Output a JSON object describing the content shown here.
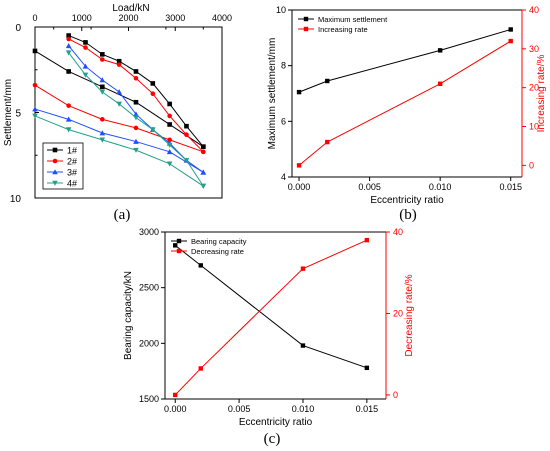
{
  "colors": {
    "black": "#000000",
    "red": "#ff0000",
    "blue": "#1f4fff",
    "green": "#22a08c",
    "gray": "#555555"
  },
  "panel_labels": {
    "a": "(a)",
    "b": "(b)",
    "c": "(c)"
  },
  "chart_data": [
    {
      "panel": "a",
      "type": "line",
      "title": "",
      "xlabel": "Load/kN",
      "ylabel": "Settlement/mm",
      "x_axis_position": "top",
      "y_axis_inverted": true,
      "xlim": [
        0,
        4000
      ],
      "ylim": [
        0,
        10
      ],
      "xticks": [
        "0",
        "1000",
        "2000",
        "3000",
        "4000"
      ],
      "x_minor_ticks": [
        "400",
        "1200",
        "2000",
        "2800",
        "3600"
      ],
      "yticks": [
        "0",
        "5",
        "10"
      ],
      "legend_position": "bottom-left",
      "series": [
        {
          "name": "1#",
          "color": "black",
          "marker": "square",
          "x": [
            0,
            720,
            1440,
            2160,
            2880,
            3600
          ],
          "y": [
            1.4,
            2.6,
            3.5,
            4.4,
            5.7,
            7.0
          ]
        },
        {
          "name": "2#",
          "color": "red",
          "marker": "circle",
          "x": [
            0,
            720,
            1440,
            2160,
            2880,
            3600
          ],
          "y": [
            3.4,
            4.6,
            5.4,
            5.9,
            6.6,
            7.3
          ]
        },
        {
          "name": "3#",
          "color": "blue",
          "marker": "triangle-up",
          "x": [
            0,
            720,
            1440,
            2160,
            2880,
            3600
          ],
          "y": [
            4.8,
            5.4,
            6.2,
            6.7,
            7.3,
            8.5
          ]
        },
        {
          "name": "4#",
          "color": "green",
          "marker": "triangle-down",
          "x": [
            0,
            720,
            1440,
            2160,
            2880,
            3600
          ],
          "y": [
            5.2,
            6.0,
            6.6,
            7.2,
            8.0,
            9.3
          ]
        },
        {
          "name": "",
          "color": "black",
          "marker": "square",
          "x": [
            720,
            1080,
            1440,
            1800,
            2160,
            2520,
            2880,
            3240,
            3600
          ],
          "y": [
            0.5,
            0.9,
            1.6,
            2.0,
            2.6,
            3.3,
            4.5,
            5.8,
            7.0
          ]
        },
        {
          "name": "",
          "color": "red",
          "marker": "circle",
          "x": [
            720,
            1080,
            1440,
            1800,
            2160,
            2520,
            2880,
            3240,
            3600
          ],
          "y": [
            0.7,
            1.2,
            1.9,
            2.2,
            3.0,
            3.9,
            5.2,
            6.3,
            7.3
          ]
        },
        {
          "name": "",
          "color": "blue",
          "marker": "triangle-up",
          "x": [
            720,
            1080,
            1440,
            1800,
            2160,
            2520,
            2880,
            3240,
            3600
          ],
          "y": [
            1.1,
            2.3,
            3.1,
            3.8,
            5.1,
            6.0,
            6.8,
            7.8,
            8.5
          ]
        },
        {
          "name": "",
          "color": "green",
          "marker": "triangle-down",
          "x": [
            720,
            1080,
            1440,
            1800,
            2160,
            2520,
            2880,
            3240,
            3600
          ],
          "y": [
            1.5,
            2.8,
            3.8,
            4.5,
            5.3,
            6.0,
            6.9,
            7.8,
            9.3
          ]
        }
      ]
    },
    {
      "panel": "b",
      "type": "line",
      "title": "",
      "xlabel": "Eccentricity ratio",
      "ylabel": "Maximum settlement/mm",
      "y2label": "Increasing rate/%",
      "xlim": [
        -0.0005,
        0.0158
      ],
      "ylim": [
        4,
        10
      ],
      "y2lim": [
        -3,
        40
      ],
      "xticks": [
        "0.000",
        "0.005",
        "0.010",
        "0.015"
      ],
      "yticks": [
        "4",
        "6",
        "8",
        "10"
      ],
      "y2ticks": [
        "0",
        "10",
        "20",
        "30",
        "40"
      ],
      "legend_position": "top-left",
      "series": [
        {
          "name": "Maximum settlement",
          "axis": "left",
          "color": "black",
          "marker": "square",
          "x": [
            0,
            0.002,
            0.01,
            0.015
          ],
          "y": [
            7.05,
            7.45,
            8.55,
            9.3
          ]
        },
        {
          "name": "Increasing rate",
          "axis": "right",
          "color": "red",
          "marker": "square",
          "x": [
            0,
            0.002,
            0.01,
            0.015
          ],
          "y": [
            0,
            6,
            21,
            32
          ]
        }
      ]
    },
    {
      "panel": "c",
      "type": "line",
      "title": "",
      "xlabel": "Eccentricity ratio",
      "ylabel": "Bearing capacity/kN",
      "y2label": "Decreasing rate/%",
      "xlim": [
        -0.0008,
        0.0165
      ],
      "ylim": [
        1500,
        3000
      ],
      "y2lim": [
        -1,
        40
      ],
      "xticks": [
        "0.000",
        "0.005",
        "0.010",
        "0.015"
      ],
      "yticks": [
        "1500",
        "2000",
        "2500",
        "3000"
      ],
      "y2ticks": [
        "0",
        "20",
        "40"
      ],
      "legend_position": "top-left",
      "series": [
        {
          "name": "Bearing capacity",
          "axis": "left",
          "color": "black",
          "marker": "square",
          "x": [
            0,
            0.002,
            0.01,
            0.015
          ],
          "y": [
            2880,
            2700,
            1980,
            1780
          ]
        },
        {
          "name": "Decreasing rate",
          "axis": "right",
          "color": "red",
          "marker": "square",
          "x": [
            0,
            0.002,
            0.01,
            0.015
          ],
          "y": [
            0,
            6.5,
            31,
            38
          ]
        }
      ]
    }
  ]
}
